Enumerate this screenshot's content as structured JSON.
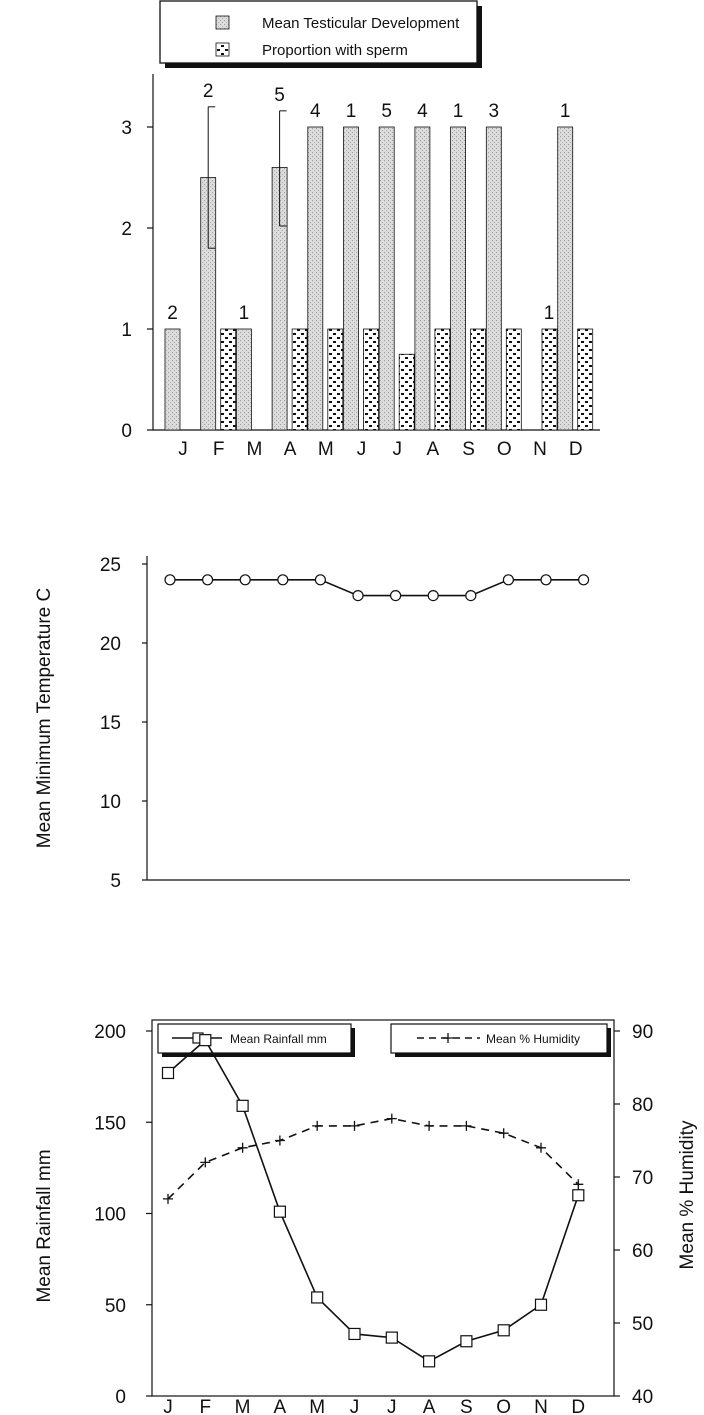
{
  "months": [
    "J",
    "F",
    "M",
    "A",
    "M",
    "J",
    "J",
    "A",
    "S",
    "O",
    "N",
    "D"
  ],
  "chart_data": [
    {
      "type": "bar",
      "categories": [
        "J",
        "F",
        "M",
        "A",
        "M",
        "J",
        "J",
        "A",
        "S",
        "O",
        "N",
        "D"
      ],
      "series": [
        {
          "name": "Mean Testicular Development",
          "values": [
            1,
            2.5,
            1,
            2.6,
            3,
            3,
            3,
            3,
            3,
            3,
            null,
            3
          ]
        },
        {
          "name": "Proportion with sperm",
          "values": [
            null,
            1,
            null,
            1,
            1,
            1,
            0.75,
            1,
            1,
            1,
            1,
            1
          ]
        }
      ],
      "sample_sizes": [
        "2",
        "2",
        "1",
        "5",
        "4",
        "1",
        "5",
        "4",
        "1",
        "3",
        "1",
        "1"
      ],
      "error_bars": [
        null,
        [
          1.8,
          3.2
        ],
        null,
        [
          2.02,
          3.16
        ],
        null,
        null,
        null,
        null,
        null,
        null,
        null,
        null
      ],
      "yticks": [
        "0",
        "1",
        "2",
        "3"
      ],
      "ylim": [
        0,
        3.5
      ],
      "legend": "top"
    },
    {
      "type": "line",
      "categories": [
        "J",
        "F",
        "M",
        "A",
        "M",
        "J",
        "J",
        "A",
        "S",
        "O",
        "N",
        "D"
      ],
      "series": [
        {
          "values": [
            24,
            24,
            24,
            24,
            24,
            23,
            23,
            23,
            23,
            24,
            24,
            24
          ]
        }
      ],
      "ylabel": "Mean Minimum Temperature C",
      "yticks": [
        "5",
        "10",
        "15",
        "20",
        "25"
      ],
      "ylim": [
        5,
        25
      ]
    },
    {
      "type": "line",
      "categories": [
        "J",
        "F",
        "M",
        "A",
        "M",
        "J",
        "J",
        "A",
        "S",
        "O",
        "N",
        "D"
      ],
      "series": [
        {
          "name": "Mean Rainfall mm",
          "axis": "left",
          "values": [
            177,
            195,
            159,
            101,
            54,
            34,
            32,
            19,
            30,
            36,
            50,
            110
          ]
        },
        {
          "name": "Mean % Humidity",
          "axis": "right",
          "values": [
            67,
            72,
            74,
            75,
            77,
            77,
            78,
            77,
            77,
            76,
            74,
            69
          ]
        }
      ],
      "ylabel_left": "Mean Rainfall mm",
      "ylabel_right": "Mean % Humidity",
      "yticks_left": [
        "0",
        "50",
        "100",
        "150",
        "200"
      ],
      "yticks_right": [
        "40",
        "50",
        "60",
        "70",
        "80",
        "90"
      ],
      "ylim_left": [
        0,
        200
      ],
      "ylim_right": [
        40,
        90
      ],
      "legend": "top"
    }
  ]
}
